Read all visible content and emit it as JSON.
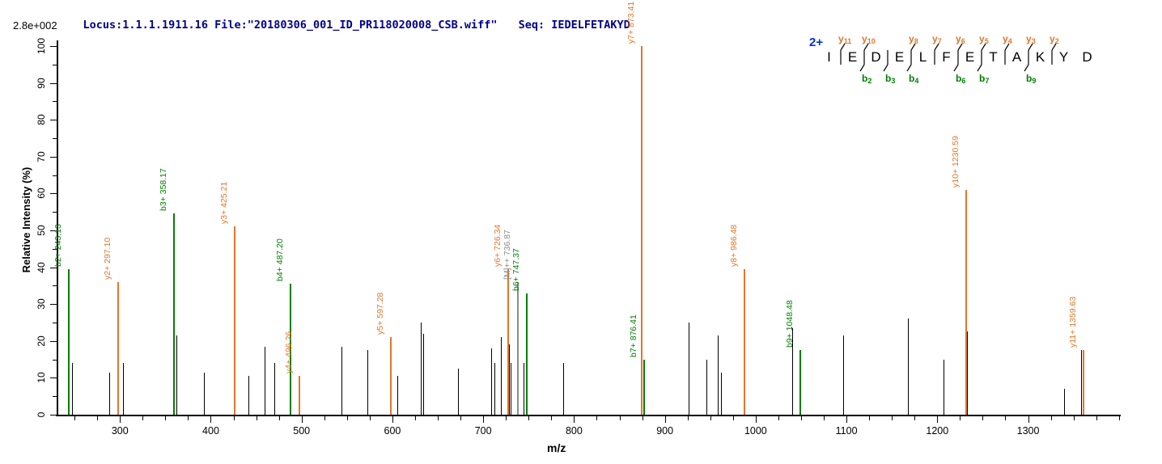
{
  "header": {
    "locus_file": "Locus:1.1.1.1911.16 File:\"20180306_001_ID_PR118020008_CSB.wiff\"",
    "seq": "Seq: IEDELFETAKYD",
    "base_peak_intensity": "2.8e+002"
  },
  "colors": {
    "header_text": "#00008B",
    "charge_label": "#0033CC",
    "y_ion": "#E2762C",
    "b_ion": "#008000",
    "precursor_ion": "#8C8C8C",
    "peak": "#000000"
  },
  "peptide": {
    "charge_label": "2+",
    "residues": [
      "I",
      "E",
      "D",
      "E",
      "L",
      "F",
      "E",
      "T",
      "A",
      "K",
      "Y",
      "D"
    ],
    "cleavages": [
      {
        "after_residue": 1,
        "y_ion": "y11",
        "b_ion": null
      },
      {
        "after_residue": 2,
        "y_ion": "y10",
        "b_ion": "b2"
      },
      {
        "after_residue": 3,
        "y_ion": null,
        "b_ion": "b3"
      },
      {
        "after_residue": 4,
        "y_ion": "y8",
        "b_ion": "b4"
      },
      {
        "after_residue": 5,
        "y_ion": "y7",
        "b_ion": null
      },
      {
        "after_residue": 6,
        "y_ion": "y6",
        "b_ion": "b6"
      },
      {
        "after_residue": 7,
        "y_ion": "y5",
        "b_ion": "b7"
      },
      {
        "after_residue": 8,
        "y_ion": "y4",
        "b_ion": null
      },
      {
        "after_residue": 9,
        "y_ion": "y3",
        "b_ion": "b9"
      },
      {
        "after_residue": 10,
        "y_ion": "y2",
        "b_ion": null
      },
      {
        "after_residue": 11,
        "y_ion": null,
        "b_ion": null
      }
    ]
  },
  "chart_data": {
    "type": "bar",
    "subtype": "ms2-stick-spectrum",
    "title": "",
    "xlabel": "m/z",
    "ylabel": "Relative  Intensity  (%)",
    "xlim": [
      233,
      1400
    ],
    "ylim": [
      0,
      100
    ],
    "x_major_ticks": [
      300,
      400,
      500,
      600,
      700,
      800,
      900,
      1000,
      1100,
      1200,
      1300
    ],
    "x_minor_tick_step": 25,
    "y_major_tick_step": 10,
    "y_minor_tick_step": 5,
    "grid": false,
    "legend": false,
    "labeled_peaks": [
      {
        "label": "b2+ 243.13",
        "mz": 243.13,
        "intensity": 39.5,
        "ion": "b"
      },
      {
        "label": "y2+ 297.10",
        "mz": 297.1,
        "intensity": 36.0,
        "ion": "y"
      },
      {
        "label": "b3+ 358.17",
        "mz": 358.17,
        "intensity": 54.5,
        "ion": "b"
      },
      {
        "label": "y3+ 425.21",
        "mz": 425.21,
        "intensity": 51.0,
        "ion": "y"
      },
      {
        "label": "b4+ 487.20",
        "mz": 487.2,
        "intensity": 35.5,
        "ion": "b"
      },
      {
        "label": "y4+ 496.26",
        "mz": 496.26,
        "intensity": 10.5,
        "ion": "y"
      },
      {
        "label": "y5+ 597.28",
        "mz": 597.28,
        "intensity": 21.0,
        "ion": "y"
      },
      {
        "label": "y6+ 726.34",
        "mz": 726.34,
        "intensity": 39.5,
        "ion": "y"
      },
      {
        "label": "[M]++ 736.87",
        "mz": 736.87,
        "intensity": 36.0,
        "ion": "precursor"
      },
      {
        "label": "b6+ 747.37",
        "mz": 747.37,
        "intensity": 33.0,
        "ion": "b"
      },
      {
        "label": "y7+ 873.41",
        "mz": 873.41,
        "intensity": 100.0,
        "ion": "y"
      },
      {
        "label": "b7+ 876.41",
        "mz": 876.41,
        "intensity": 15.0,
        "ion": "b"
      },
      {
        "label": "y8+ 986.48",
        "mz": 986.48,
        "intensity": 39.5,
        "ion": "y"
      },
      {
        "label": "b9+ 1048.48",
        "mz": 1048.48,
        "intensity": 17.5,
        "ion": "b"
      },
      {
        "label": "y10+ 1230.59",
        "mz": 1230.59,
        "intensity": 61.0,
        "ion": "y"
      },
      {
        "label": "y11+ 1359.63",
        "mz": 1359.63,
        "intensity": 17.5,
        "ion": "y"
      }
    ],
    "unlabeled_peaks": [
      [
        247.5,
        14.0
      ],
      [
        288,
        11.5
      ],
      [
        303,
        14.0
      ],
      [
        362,
        21.5
      ],
      [
        392,
        11.5
      ],
      [
        441.5,
        10.5
      ],
      [
        459.5,
        18.5
      ],
      [
        469.5,
        14.0
      ],
      [
        544,
        18.5
      ],
      [
        572,
        17.5
      ],
      [
        605.5,
        10.5
      ],
      [
        631,
        25.0
      ],
      [
        634,
        22.0
      ],
      [
        672,
        12.5
      ],
      [
        708.5,
        18.0
      ],
      [
        712,
        14.0
      ],
      [
        719,
        21.0
      ],
      [
        728.5,
        19.0
      ],
      [
        730.5,
        14.0
      ],
      [
        744.5,
        14.0
      ],
      [
        788,
        14.0
      ],
      [
        926,
        25.0
      ],
      [
        946,
        15.0
      ],
      [
        958,
        21.5
      ],
      [
        962,
        11.5
      ],
      [
        1040,
        23.5
      ],
      [
        1096,
        21.5
      ],
      [
        1168,
        26.0
      ],
      [
        1207,
        15.0
      ],
      [
        1232.5,
        22.5
      ],
      [
        1340,
        7.0
      ],
      [
        1358,
        17.5
      ]
    ]
  }
}
